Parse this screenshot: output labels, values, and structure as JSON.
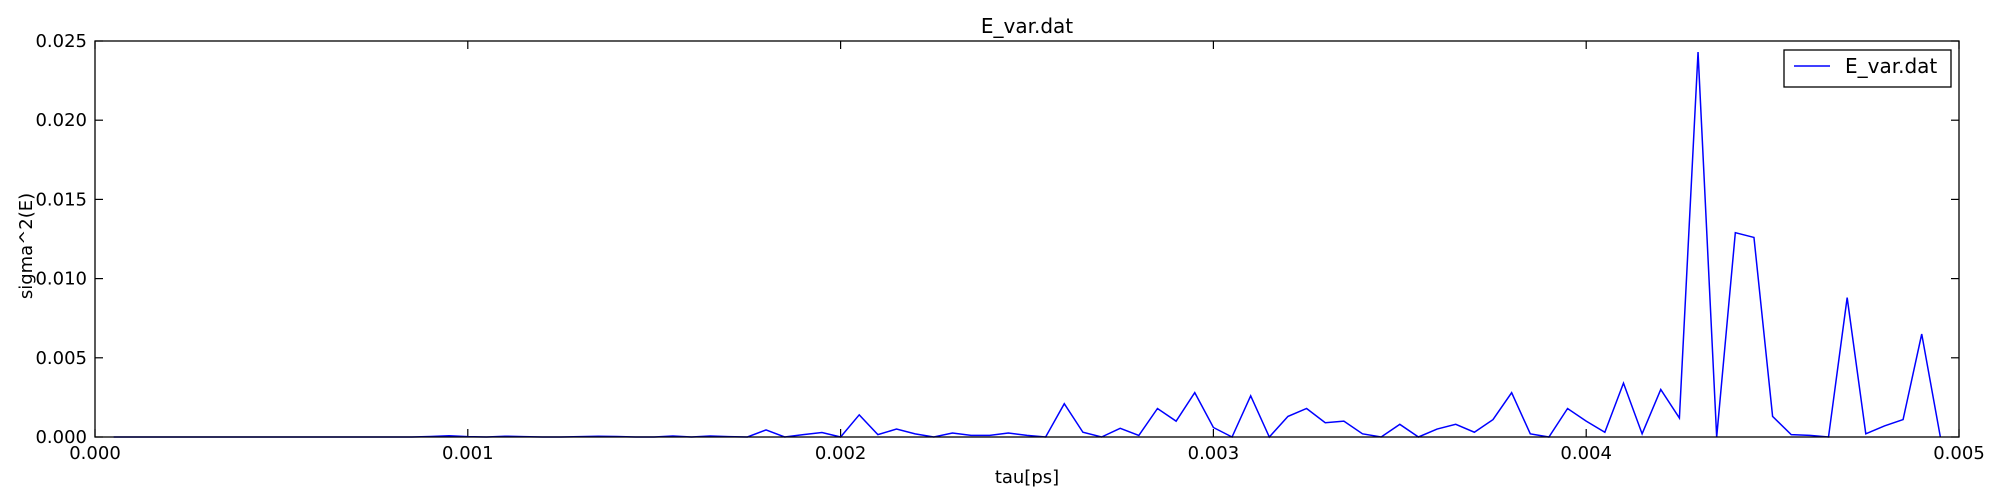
{
  "chart_data": {
    "type": "line",
    "title": "E_var.dat",
    "xlabel": "tau[ps]",
    "ylabel": "sigma^2(E)",
    "xlim": [
      0.0,
      0.005
    ],
    "ylim": [
      0.0,
      0.025
    ],
    "xticks": [
      0.0,
      0.001,
      0.002,
      0.003,
      0.004,
      0.005
    ],
    "xtick_labels": [
      "0.000",
      "0.001",
      "0.002",
      "0.003",
      "0.004",
      "0.005"
    ],
    "yticks": [
      0.0,
      0.005,
      0.01,
      0.015,
      0.02,
      0.025
    ],
    "ytick_labels": [
      "0.000",
      "0.005",
      "0.010",
      "0.015",
      "0.020",
      "0.025"
    ],
    "grid": false,
    "legend": "top-right",
    "series": [
      {
        "name": "E_var.dat",
        "color": "#0000ff",
        "x": [
          5e-05,
          0.0001,
          0.00015,
          0.0002,
          0.00025,
          0.0003,
          0.00035,
          0.0004,
          0.00045,
          0.0005,
          0.00055,
          0.0006,
          0.00065,
          0.0007,
          0.00075,
          0.0008,
          0.00085,
          0.0009,
          0.00095,
          0.001,
          0.00105,
          0.0011,
          0.00115,
          0.0012,
          0.00125,
          0.0013,
          0.00135,
          0.0014,
          0.00145,
          0.0015,
          0.00155,
          0.0016,
          0.00165,
          0.0017,
          0.00175,
          0.0018,
          0.00185,
          0.0019,
          0.00195,
          0.002,
          0.00205,
          0.0021,
          0.00215,
          0.0022,
          0.00225,
          0.0023,
          0.00235,
          0.0024,
          0.00245,
          0.0025,
          0.00255,
          0.0026,
          0.00265,
          0.0027,
          0.00275,
          0.0028,
          0.00285,
          0.0029,
          0.00295,
          0.003,
          0.00305,
          0.0031,
          0.00315,
          0.0032,
          0.00325,
          0.0033,
          0.00335,
          0.0034,
          0.00345,
          0.0035,
          0.00355,
          0.0036,
          0.00365,
          0.0037,
          0.00375,
          0.0038,
          0.00385,
          0.0039,
          0.00395,
          0.004,
          0.00405,
          0.0041,
          0.00415,
          0.0042,
          0.00425,
          0.0043,
          0.00435,
          0.0044,
          0.00445,
          0.0045,
          0.00455,
          0.0046,
          0.00465,
          0.0047,
          0.00475,
          0.0048,
          0.00485,
          0.0049,
          0.00495
        ],
        "y": [
          0.0,
          0.0,
          0.0,
          0.0,
          0.0,
          0.0,
          0.0,
          0.0,
          0.0,
          0.0,
          0.0,
          0.0,
          0.0,
          0.0,
          0.0,
          0.0,
          0.0,
          3e-05,
          8e-05,
          2e-05,
          0.0,
          5e-05,
          2e-05,
          0.0,
          0.0,
          2e-05,
          5e-05,
          3e-05,
          0.0,
          0.0,
          6e-05,
          0.0,
          6e-05,
          2e-05,
          0.0,
          0.00045,
          0.0,
          0.00015,
          0.00028,
          0.0,
          0.0014,
          0.00015,
          0.0005,
          0.0002,
          0.0,
          0.00025,
          0.0001,
          0.0001,
          0.00025,
          0.0001,
          0.0,
          0.0021,
          0.0003,
          0.0,
          0.00055,
          0.0001,
          0.0018,
          0.001,
          0.0028,
          0.0006,
          0.0,
          0.0026,
          0.0,
          0.0013,
          0.0018,
          0.0009,
          0.001,
          0.0002,
          0.0,
          0.0008,
          0.0,
          0.0005,
          0.0008,
          0.0003,
          0.0011,
          0.0028,
          0.0002,
          0.0,
          0.0018,
          0.001,
          0.0003,
          0.0034,
          0.0002,
          0.003,
          0.0012,
          0.0243,
          0.0,
          0.0129,
          0.0126,
          0.0013,
          0.00015,
          0.0001,
          0.0,
          0.0088,
          0.0002,
          0.0007,
          0.0011,
          0.0065,
          0.0
        ]
      }
    ]
  }
}
